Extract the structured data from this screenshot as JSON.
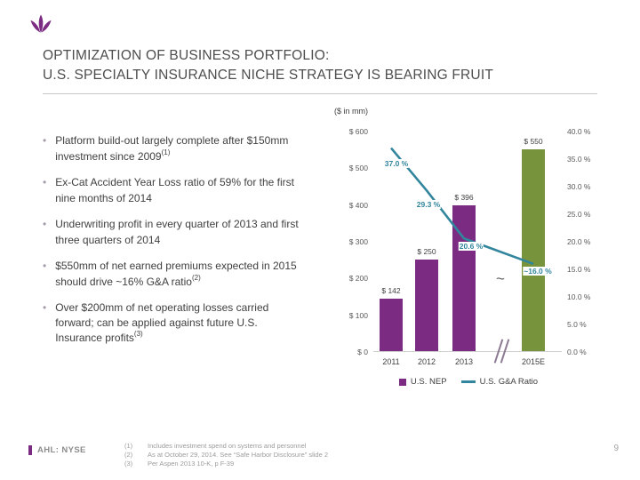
{
  "header": {
    "title_line1": "OPTIMIZATION OF BUSINESS PORTFOLIO:",
    "title_line2": "U.S. SPECIALTY INSURANCE NICHE STRATEGY IS BEARING FRUIT"
  },
  "bullets": [
    {
      "text": "Platform build-out largely complete after $150mm investment since 2009",
      "sup": "(1)"
    },
    {
      "text": "Ex-Cat Accident Year Loss ratio of 59% for the first nine months of 2014",
      "sup": ""
    },
    {
      "text": "Underwriting profit in every quarter of 2013 and first three quarters of 2014",
      "sup": ""
    },
    {
      "text": "$550mm of net earned premiums expected in 2015 should drive ~16% G&A ratio",
      "sup": "(2)"
    },
    {
      "text": "Over $200mm of net operating losses carried forward; can be applied against future U.S. Insurance profits",
      "sup": "(3)"
    }
  ],
  "chart_data": {
    "type": "bar",
    "units_label": "($ in mm)",
    "categories": [
      "2011",
      "2012",
      "2013",
      "2015E"
    ],
    "series": [
      {
        "name": "U.S. NEP",
        "type": "bar",
        "values": [
          142,
          250,
          396,
          550
        ],
        "labels": [
          "$ 142",
          "$ 250",
          "$ 396",
          "$ 550"
        ],
        "colors": [
          "#7b2c82",
          "#7b2c82",
          "#7b2c82",
          "#77933c"
        ]
      },
      {
        "name": "U.S. G&A Ratio",
        "type": "line",
        "values": [
          37.0,
          29.3,
          20.6,
          16.0
        ],
        "labels": [
          "37.0 %",
          "29.3 %",
          "20.6 %",
          "~16.0 %"
        ],
        "color": "#31859c"
      }
    ],
    "left_axis": {
      "ticks": [
        "$ 600",
        "$ 500",
        "$ 400",
        "$ 300",
        "$ 200",
        "$ 100",
        "$ 0"
      ],
      "range": [
        0,
        600
      ]
    },
    "right_axis": {
      "ticks": [
        "40.0 %",
        "35.0 %",
        "30.0 %",
        "25.0 %",
        "20.0 %",
        "15.0 %",
        "10.0 %",
        "5.0 %",
        "0.0 %"
      ],
      "range": [
        0,
        40
      ]
    },
    "axis_break": "~",
    "legend_position": "bottom",
    "grid": false
  },
  "footer": {
    "ticker": "AHL: NYSE",
    "page_number": "9",
    "footnotes": [
      {
        "num": "(1)",
        "text": "Includes investment spend on systems and personnel"
      },
      {
        "num": "(2)",
        "text": "As at October 29, 2014. See “Safe Harbor Disclosure” slide 2"
      },
      {
        "num": "(3)",
        "text": "Per Aspen 2013 10-K, p  F-39"
      }
    ]
  },
  "colors": {
    "purple": "#7b2c82",
    "green": "#77933c",
    "teal": "#31859c"
  }
}
